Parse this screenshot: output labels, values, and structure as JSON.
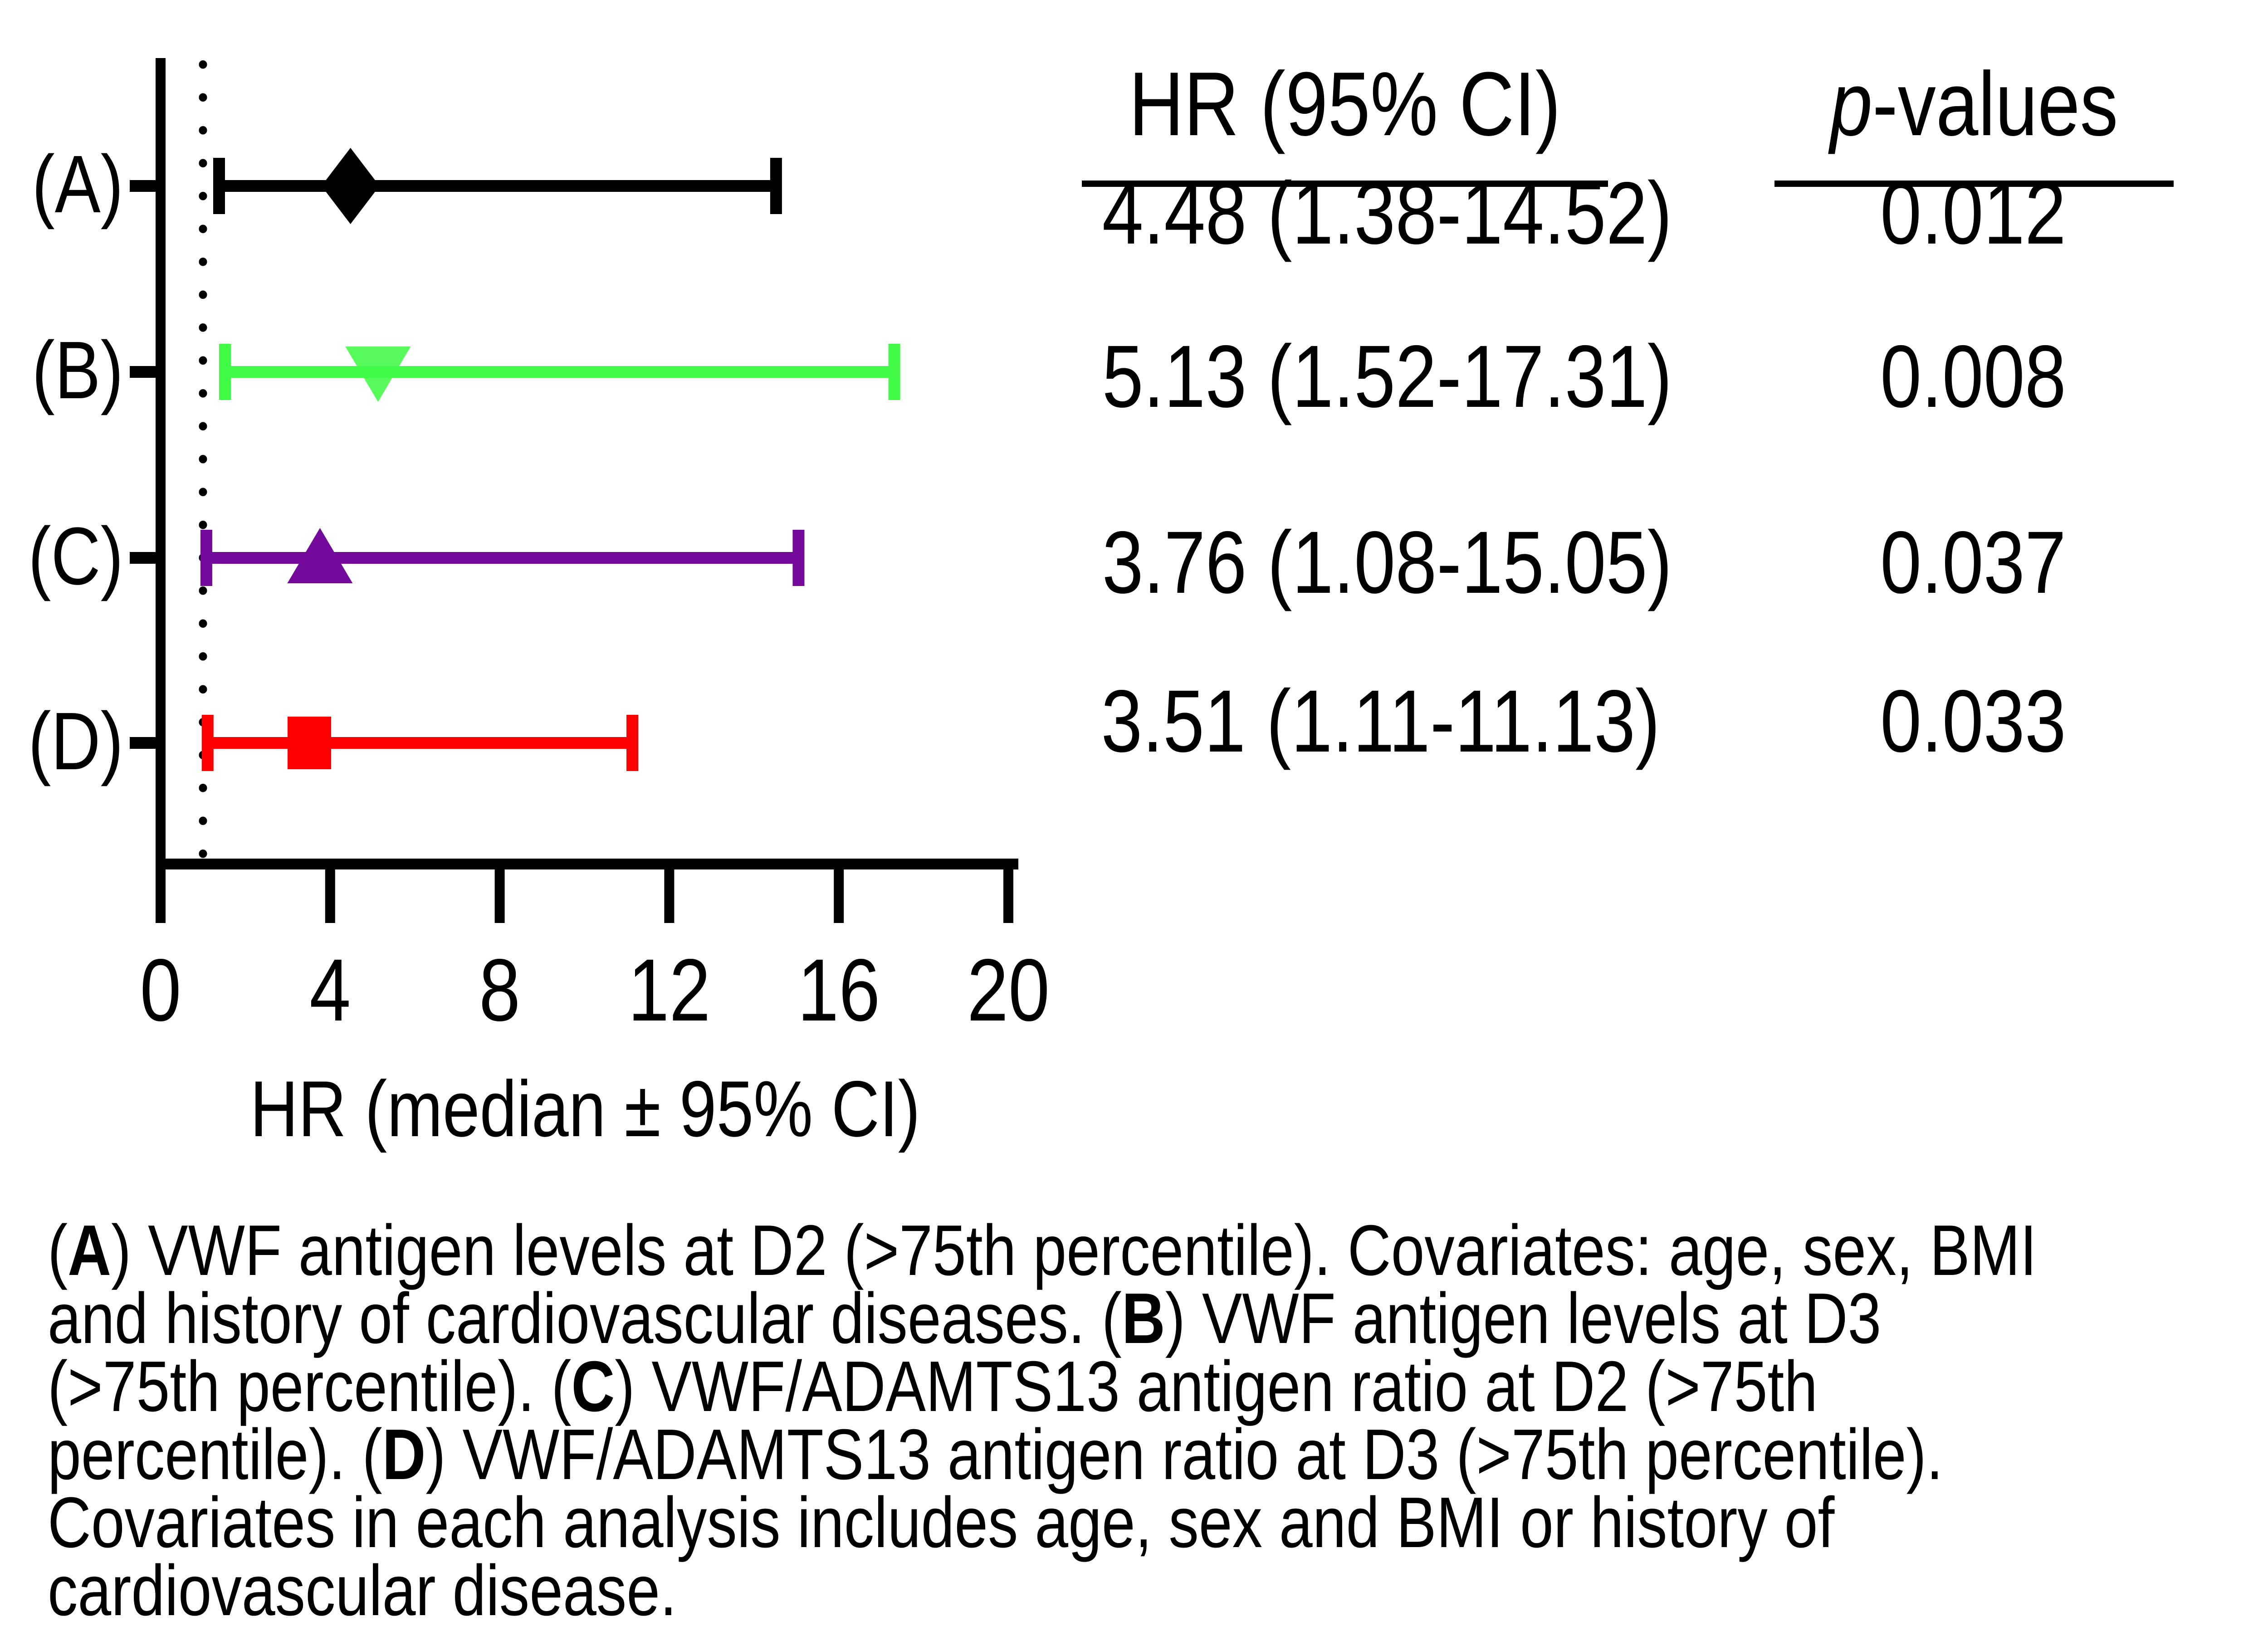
{
  "table": {
    "col1_header": "HR (95% CI)",
    "col2_header_italic": "p",
    "col2_header_rest": "-values",
    "rows": [
      {
        "hr": "4.48 (1.38-14.52)",
        "p": "0.012"
      },
      {
        "hr": "5.13 (1.52-17.31)",
        "p": "0.008"
      },
      {
        "hr": "3.76 (1.08-15.05)",
        "p": "0.037"
      },
      {
        "hr": "3.51 (1.11-11.13)",
        "p": "0.033"
      }
    ]
  },
  "chart_data": {
    "type": "scatter",
    "subtype": "forest-plot",
    "xlabel": "HR (median ± 95% CI)",
    "xlim": [
      0,
      20
    ],
    "x_ticks": [
      0,
      4,
      8,
      12,
      16,
      20
    ],
    "reference_line_x": 1,
    "reference_line_style": "dotted",
    "grid": false,
    "series": [
      {
        "label": "(A)",
        "median": 4.48,
        "ci_low": 1.38,
        "ci_high": 14.52,
        "color": "#000000",
        "marker": "diamond"
      },
      {
        "label": "(B)",
        "median": 5.13,
        "ci_low": 1.52,
        "ci_high": 17.31,
        "color": "#40FA46",
        "marker": "triangle-down"
      },
      {
        "label": "(C)",
        "median": 3.76,
        "ci_low": 1.08,
        "ci_high": 15.05,
        "color": "#730A9B",
        "marker": "triangle-up"
      },
      {
        "label": "(D)",
        "median": 3.51,
        "ci_low": 1.11,
        "ci_high": 11.13,
        "color": "#FF0000",
        "marker": "square"
      }
    ]
  },
  "caption": {
    "lines": [
      {
        "pre": "(",
        "bold": "A",
        "post": ") VWF antigen levels at D2 (>75th percentile). Covariates: age, sex, BMI"
      },
      {
        "pre": "and history of cardiovascular diseases. (",
        "bold": "B",
        "post": ") VWF antigen levels at D3"
      },
      {
        "pre": "(>75th percentile). (",
        "bold": "C",
        "post": ") VWF/ADAMTS13 antigen ratio at D2 (>75th"
      },
      {
        "pre": "percentile). (",
        "bold": "D",
        "post": ") VWF/ADAMTS13 antigen ratio at D3 (>75th percentile)."
      },
      {
        "pre": "",
        "bold": "",
        "post": "Covariates in each analysis includes age, sex and BMI or history of"
      },
      {
        "pre": "",
        "bold": "",
        "post": "cardiovascular disease."
      }
    ]
  }
}
